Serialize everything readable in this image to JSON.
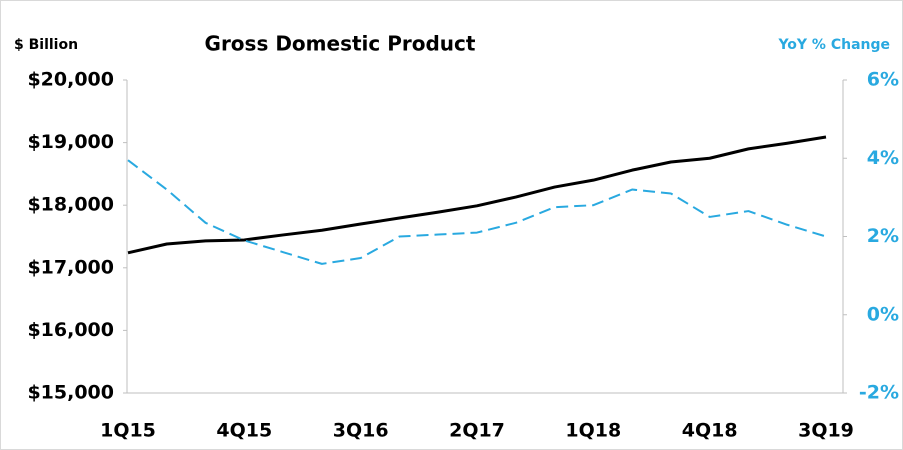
{
  "chart_data": {
    "type": "line",
    "title": "Gross Domestic Product",
    "y_label": "$ Billion",
    "y2_label": "YoY % Change",
    "categories": [
      "1Q15",
      null,
      null,
      "4Q15",
      null,
      null,
      "3Q16",
      null,
      null,
      "2Q17",
      null,
      null,
      "1Q18",
      null,
      null,
      "4Q18",
      null,
      null,
      "3Q19"
    ],
    "series": [
      {
        "name": "GDP",
        "color": "#000000",
        "dash": false,
        "values": [
          17240,
          17380,
          17430,
          17445,
          17525,
          17600,
          17700,
          17795,
          17890,
          17990,
          18130,
          18290,
          18400,
          18560,
          18690,
          18750,
          18900,
          18990,
          19090
        ]
      },
      {
        "name": "YoY % Change",
        "color": "#29a9e0",
        "dash": true,
        "axis": "y2",
        "values": [
          3.95,
          3.2,
          2.35,
          1.9,
          1.6,
          1.3,
          1.45,
          2.0,
          2.05,
          2.1,
          2.35,
          2.75,
          2.8,
          3.2,
          3.1,
          2.5,
          2.65,
          2.3,
          2.0
        ]
      }
    ],
    "ylim": [
      15000,
      20000
    ],
    "yticks": [
      {
        "value": 15000,
        "label": "$15,000"
      },
      {
        "value": 16000,
        "label": "$16,000"
      },
      {
        "value": 17000,
        "label": "$17,000"
      },
      {
        "value": 18000,
        "label": "$18,000"
      },
      {
        "value": 19000,
        "label": "$19,000"
      },
      {
        "value": 20000,
        "label": "$20,000"
      }
    ],
    "y2lim": [
      -2,
      6
    ],
    "y2ticks": [
      {
        "value": -2,
        "label": "-2%"
      },
      {
        "value": 0,
        "label": "0%"
      },
      {
        "value": 2,
        "label": "2%"
      },
      {
        "value": 4,
        "label": "4%"
      },
      {
        "value": 6,
        "label": "6%"
      }
    ],
    "y2color": "#29a9e0"
  }
}
